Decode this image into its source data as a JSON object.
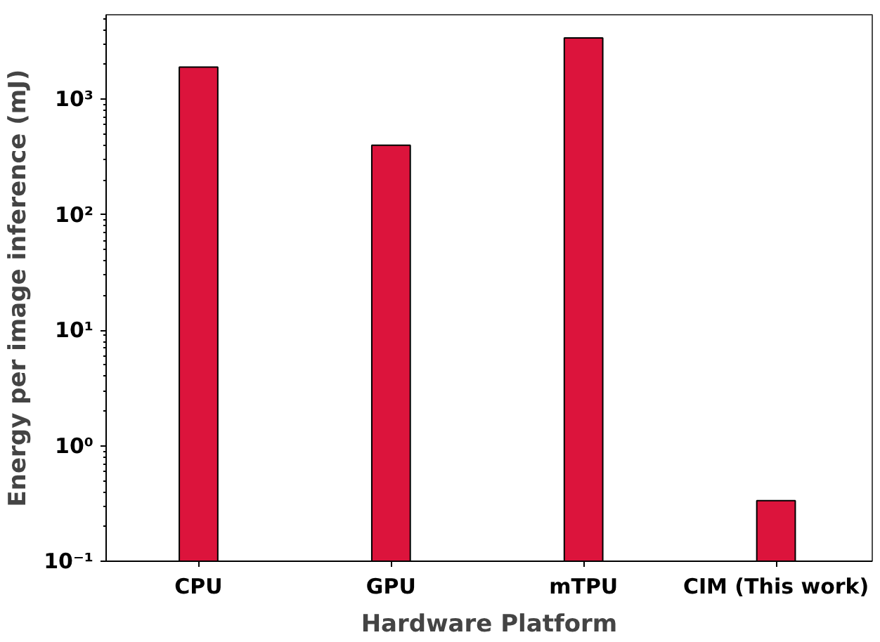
{
  "chart_data": {
    "type": "bar",
    "xlabel": "Hardware Platform",
    "ylabel": "Energy per image inference (mJ)",
    "categories": [
      "CPU",
      "GPU",
      "mTPU",
      "CIM (This work)"
    ],
    "values": [
      1900,
      400,
      3400,
      0.335
    ],
    "color": "#dc143c",
    "log": "y",
    "ylim": [
      0.1,
      5400
    ],
    "yticks": [
      {
        "value": 0.1,
        "label": "10⁻¹"
      },
      {
        "value": 1,
        "label": "10⁰"
      },
      {
        "value": 10,
        "label": "10¹"
      },
      {
        "value": 100,
        "label": "10²"
      },
      {
        "value": 1000,
        "label": "10³"
      }
    ],
    "grid": false
  }
}
